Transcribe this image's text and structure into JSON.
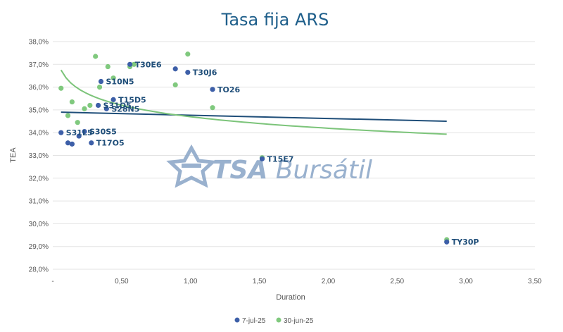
{
  "chart_data": {
    "type": "scatter",
    "title": "Tasa fija ARS",
    "xlabel": "Duration",
    "ylabel": "TEA",
    "xlim": [
      0,
      3.5
    ],
    "ylim": [
      28,
      38
    ],
    "x_ticks": [
      "-",
      "0,50",
      "1,00",
      "1,50",
      "2,00",
      "2,50",
      "3,00",
      "3,50"
    ],
    "y_ticks": [
      "28,0%",
      "29,0%",
      "30,0%",
      "31,0%",
      "32,0%",
      "33,0%",
      "34,0%",
      "35,0%",
      "36,0%",
      "37,0%",
      "38,0%"
    ],
    "colors": {
      "series1": "#3d5fa8",
      "series2": "#80c97e",
      "trend1": "#1f4e79",
      "trend2": "#7cc47a"
    },
    "legend_position": "bottom",
    "watermark": "TSA Bursátil",
    "series": [
      {
        "name": "7-jul-25",
        "points": [
          {
            "x": 0.06,
            "y": 34.0,
            "label": "S31L5"
          },
          {
            "x": 0.11,
            "y": 33.55,
            "label": ""
          },
          {
            "x": 0.14,
            "y": 33.5,
            "label": ""
          },
          {
            "x": 0.19,
            "y": 33.85,
            "label": ""
          },
          {
            "x": 0.23,
            "y": 34.05,
            "label": "S30S5"
          },
          {
            "x": 0.28,
            "y": 33.55,
            "label": "T17O5"
          },
          {
            "x": 0.33,
            "y": 35.2,
            "label": "S31O5"
          },
          {
            "x": 0.35,
            "y": 36.25,
            "label": "S10N5"
          },
          {
            "x": 0.39,
            "y": 35.05,
            "label": "S28N5"
          },
          {
            "x": 0.44,
            "y": 35.45,
            "label": "T15D5"
          },
          {
            "x": 0.56,
            "y": 37.0,
            "label": "T30E6"
          },
          {
            "x": 0.89,
            "y": 36.8,
            "label": ""
          },
          {
            "x": 0.98,
            "y": 36.65,
            "label": "T30J6"
          },
          {
            "x": 1.16,
            "y": 35.9,
            "label": "TO26"
          },
          {
            "x": 1.52,
            "y": 32.85,
            "label": "T15E7"
          },
          {
            "x": 2.86,
            "y": 29.2,
            "label": "TY30P"
          }
        ],
        "trend": {
          "type": "linear",
          "from": [
            0.06,
            34.9
          ],
          "to": [
            2.86,
            34.5
          ]
        }
      },
      {
        "name": "30-jun-25",
        "points": [
          {
            "x": 0.06,
            "y": 35.95
          },
          {
            "x": 0.11,
            "y": 34.75
          },
          {
            "x": 0.14,
            "y": 35.35
          },
          {
            "x": 0.18,
            "y": 34.45
          },
          {
            "x": 0.23,
            "y": 35.05
          },
          {
            "x": 0.27,
            "y": 35.2
          },
          {
            "x": 0.31,
            "y": 37.35
          },
          {
            "x": 0.34,
            "y": 36.0
          },
          {
            "x": 0.4,
            "y": 36.9
          },
          {
            "x": 0.44,
            "y": 36.4
          },
          {
            "x": 0.56,
            "y": 36.9
          },
          {
            "x": 0.59,
            "y": 37.0
          },
          {
            "x": 0.89,
            "y": 36.1
          },
          {
            "x": 0.98,
            "y": 37.45
          },
          {
            "x": 1.16,
            "y": 35.1
          },
          {
            "x": 1.52,
            "y": 32.9
          },
          {
            "x": 2.86,
            "y": 29.3
          }
        ],
        "trend": {
          "type": "log",
          "a": 34.7,
          "b": -0.73,
          "x_from": 0.06,
          "x_to": 2.86
        }
      }
    ]
  }
}
